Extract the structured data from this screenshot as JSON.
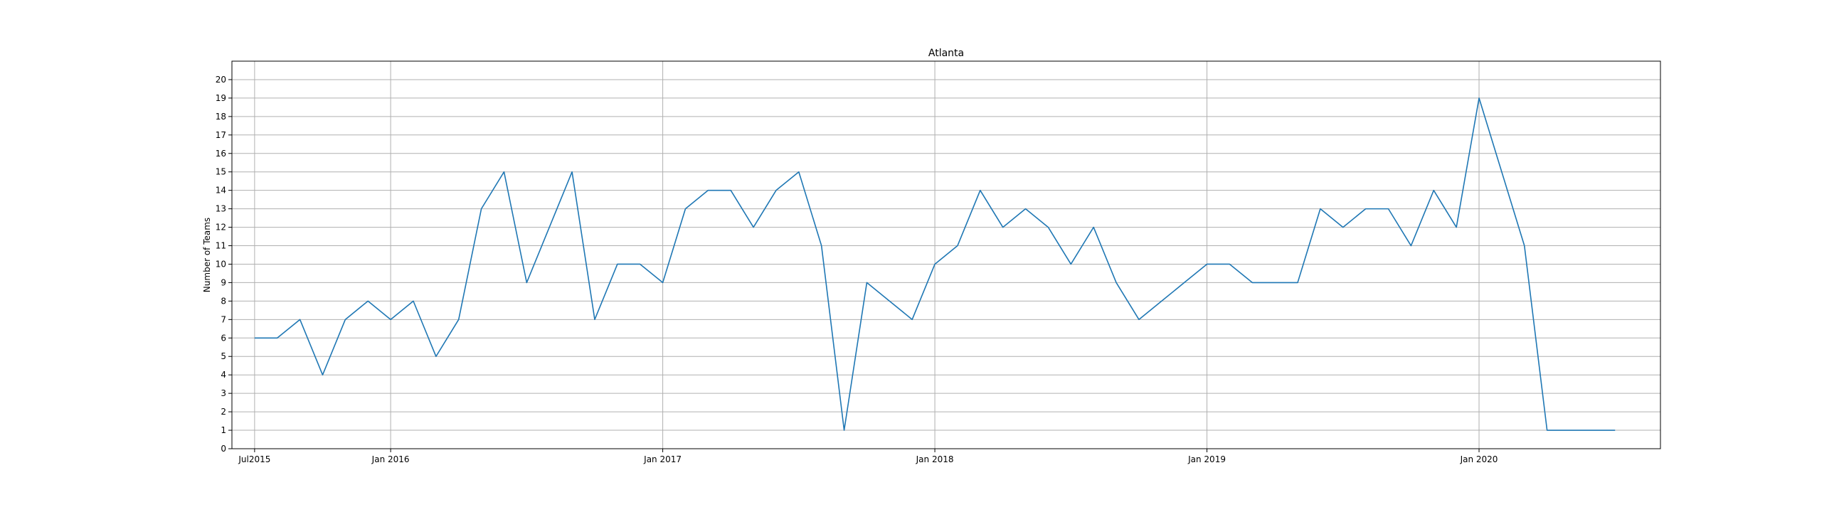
{
  "chart_data": {
    "type": "line",
    "title": "Atlanta",
    "xlabel": "",
    "ylabel": "Number of Teams",
    "ylim": [
      0,
      21
    ],
    "xlim": [
      "2015-06-01",
      "2020-09-01"
    ],
    "grid": true,
    "yticks": [
      0,
      1,
      2,
      3,
      4,
      5,
      6,
      7,
      8,
      9,
      10,
      11,
      12,
      13,
      14,
      15,
      16,
      17,
      18,
      19,
      20
    ],
    "xticks": [
      {
        "label": "Jul2015",
        "date": "2015-07-01"
      },
      {
        "label": "Jan 2016",
        "date": "2016-01-01"
      },
      {
        "label": "Jan 2017",
        "date": "2017-01-01"
      },
      {
        "label": "Jan 2018",
        "date": "2018-01-01"
      },
      {
        "label": "Jan 2019",
        "date": "2019-01-01"
      },
      {
        "label": "Jan 2020",
        "date": "2020-01-01"
      }
    ],
    "colors": {
      "line": "#1f77b4",
      "grid": "#b0b0b0",
      "axis": "#000000"
    },
    "series": [
      {
        "x": [
          "2015-07",
          "2015-08",
          "2015-09",
          "2015-10",
          "2015-11",
          "2015-12",
          "2016-01",
          "2016-02",
          "2016-03",
          "2016-04",
          "2016-05",
          "2016-06",
          "2016-07",
          "2016-08",
          "2016-09",
          "2016-10",
          "2016-11",
          "2016-12",
          "2017-01",
          "2017-02",
          "2017-03",
          "2017-04",
          "2017-05",
          "2017-06",
          "2017-07",
          "2017-08",
          "2017-09",
          "2017-10",
          "2017-11",
          "2017-12",
          "2018-01",
          "2018-02",
          "2018-03",
          "2018-04",
          "2018-05",
          "2018-06",
          "2018-07",
          "2018-08",
          "2018-09",
          "2018-10",
          "2018-11",
          "2018-12",
          "2019-01",
          "2019-02",
          "2019-03",
          "2019-04",
          "2019-05",
          "2019-06",
          "2019-07",
          "2019-08",
          "2019-09",
          "2019-10",
          "2019-11",
          "2019-12",
          "2020-01",
          "2020-02",
          "2020-03",
          "2020-04",
          "2020-05",
          "2020-06",
          "2020-07"
        ],
        "values": [
          6,
          6,
          7,
          4,
          7,
          8,
          7,
          8,
          5,
          7,
          13,
          15,
          9,
          12,
          15,
          7,
          10,
          10,
          9,
          13,
          14,
          14,
          12,
          14,
          15,
          11,
          1,
          9,
          8,
          7,
          10,
          11,
          14,
          12,
          13,
          12,
          10,
          12,
          9,
          7,
          8,
          9,
          10,
          10,
          9,
          9,
          9,
          13,
          12,
          13,
          13,
          11,
          14,
          12,
          19,
          15,
          11,
          1,
          1,
          1,
          1
        ]
      }
    ]
  }
}
